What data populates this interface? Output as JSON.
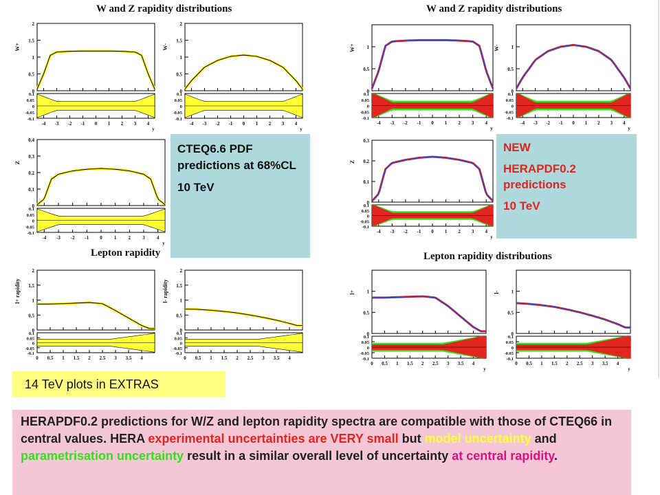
{
  "titles": {
    "left_wz": "W and Z rapidity distributions",
    "right_wz": "W and Z rapidity distributions",
    "left_lepton": "Lepton rapidity",
    "right_lepton": "Lepton rapidity distributions"
  },
  "cteq_box": {
    "line1": "CTEQ6.6 PDF predictions at 68%CL",
    "line2": "10 TeV"
  },
  "hera_box": {
    "line1": "NEW",
    "line2": "HERAPDF0.2 predictions",
    "line3": "10 TeV"
  },
  "extras_label": "14 TeV plots in EXTRAS",
  "bottom_text": {
    "p1": "HERAPDF0.2 predictions for W/Z and lepton rapidity spectra are compatible with those of CTEQ66 in central values. HERA ",
    "p2": "experimental uncertainties are VERY small",
    "p3": " but ",
    "p4": "model uncertainty",
    "p5": " and ",
    "p6": "parametrisation uncertainty",
    "p7": " result in a similar overall level of uncertainty ",
    "p8": "at central rapidity",
    "p9": "."
  },
  "colors": {
    "cyan_box": "#add8dc",
    "yellow_box": "#ffff80",
    "pink_box": "#f5c6d6",
    "exp_band": "#e0261e",
    "model_band": "#ffff33",
    "param_band": "#33e11a",
    "cteq_band": "#ffff33",
    "hera_line": "#3344cc"
  },
  "chart_data": [
    {
      "type": "line",
      "panel": "cteq-wplus",
      "ylabel": "W+",
      "xlabel": "y",
      "xlim": [
        -4.5,
        4.5
      ],
      "ylim": [
        0,
        2
      ],
      "x_ticks": [
        "-4",
        "-3",
        "-2",
        "-1",
        "0",
        "1",
        "2",
        "3",
        "4"
      ],
      "y_ticks": [
        "0",
        "0.5",
        "1",
        "1.5",
        "2"
      ],
      "x": [
        -4.5,
        -4,
        -3.5,
        -3,
        -2,
        -1,
        0,
        1,
        2,
        3,
        3.5,
        4,
        4.5
      ],
      "values": [
        0.05,
        0.5,
        1.05,
        1.15,
        1.17,
        1.18,
        1.18,
        1.18,
        1.17,
        1.15,
        1.05,
        0.5,
        0.05
      ],
      "ratio_ticks": [
        "0.1",
        "0.05",
        "0",
        "-0.05",
        "-0.1"
      ]
    },
    {
      "type": "line",
      "panel": "cteq-wminus",
      "ylabel": "W-",
      "xlabel": "y",
      "xlim": [
        -4.5,
        4.5
      ],
      "ylim": [
        0,
        2
      ],
      "x_ticks": [
        "-4",
        "-3",
        "-2",
        "-1",
        "0",
        "1",
        "2",
        "3",
        "4"
      ],
      "y_ticks": [
        "0",
        "0.5",
        "1",
        "1.5",
        "2"
      ],
      "x": [
        -4.5,
        -4,
        -3,
        -2,
        -1,
        0,
        1,
        2,
        3,
        4,
        4.5
      ],
      "values": [
        0.05,
        0.3,
        0.7,
        0.9,
        1.02,
        1.06,
        1.02,
        0.9,
        0.7,
        0.3,
        0.05
      ],
      "ratio_ticks": [
        "0.1",
        "0.05",
        "0",
        "-0.05",
        "-0.1"
      ]
    },
    {
      "type": "line",
      "panel": "cteq-z",
      "ylabel": "Z",
      "xlabel": "y",
      "xlim": [
        -4.5,
        4.5
      ],
      "ylim": [
        0,
        0.4
      ],
      "x_ticks": [
        "-4",
        "-3",
        "-2",
        "-1",
        "0",
        "1",
        "2",
        "3",
        "4"
      ],
      "y_ticks": [
        "0",
        "0.1",
        "0.2",
        "0.3",
        "0.4"
      ],
      "x": [
        -4.5,
        -4,
        -3.5,
        -3,
        -2,
        -1,
        0,
        1,
        2,
        3,
        3.5,
        4,
        4.5
      ],
      "values": [
        0.005,
        0.04,
        0.16,
        0.19,
        0.21,
        0.22,
        0.225,
        0.22,
        0.21,
        0.19,
        0.16,
        0.04,
        0.005
      ],
      "ratio_ticks": [
        "0.1",
        "0.05",
        "0",
        "-0.05",
        "-0.1"
      ]
    },
    {
      "type": "line",
      "panel": "cteq-lplus",
      "ylabel": "l+ rapidity",
      "xlabel": "",
      "xlim": [
        0,
        4.5
      ],
      "ylim": [
        0,
        2
      ],
      "x_ticks": [
        "0",
        "0.5",
        "1",
        "1.5",
        "2",
        "2.5",
        "3",
        "3.5",
        "4"
      ],
      "y_ticks": [
        "0",
        "0.5",
        "1",
        "1.5",
        "2"
      ],
      "x": [
        0,
        0.5,
        1,
        1.5,
        2,
        2.5,
        3,
        3.5,
        4,
        4.3
      ],
      "values": [
        0.87,
        0.87,
        0.88,
        0.9,
        0.92,
        0.88,
        0.65,
        0.4,
        0.15,
        0.05
      ],
      "ratio_ticks": [
        "0.1",
        "0.05",
        "0",
        "-0.05",
        "-0.1"
      ]
    },
    {
      "type": "line",
      "panel": "cteq-lminus",
      "ylabel": "l- rapidity",
      "xlabel": "",
      "xlim": [
        0,
        4.5
      ],
      "ylim": [
        0,
        2
      ],
      "x_ticks": [
        "0",
        "0.5",
        "1",
        "1.5",
        "2",
        "2.5",
        "3",
        "3.5",
        "4"
      ],
      "y_ticks": [
        "0",
        "0.5",
        "1",
        "1.5",
        "2"
      ],
      "x": [
        0,
        0.5,
        1,
        1.5,
        2,
        2.5,
        3,
        3.5,
        4,
        4.3
      ],
      "values": [
        0.7,
        0.69,
        0.66,
        0.62,
        0.57,
        0.5,
        0.42,
        0.33,
        0.22,
        0.15
      ],
      "ratio_ticks": [
        "0.1",
        "0.05",
        "0",
        "-0.05",
        "-0.1"
      ]
    },
    {
      "type": "line",
      "panel": "hera-wplus",
      "ylabel": "W+",
      "xlabel": "y",
      "xlim": [
        -4.5,
        4.5
      ],
      "ylim": [
        0,
        1.5
      ],
      "x_ticks": [
        "-4",
        "-3",
        "-2",
        "-1",
        "0",
        "1",
        "2",
        "3",
        "4"
      ],
      "y_ticks": [
        "0",
        "0.5",
        "1"
      ],
      "x": [
        -4.5,
        -4,
        -3.5,
        -3,
        -2,
        -1,
        0,
        1,
        2,
        3,
        3.5,
        4,
        4.5
      ],
      "values": [
        0.05,
        0.45,
        1.02,
        1.12,
        1.14,
        1.15,
        1.15,
        1.15,
        1.14,
        1.12,
        1.02,
        0.45,
        0.05
      ],
      "ratio_ticks": [
        "0.1",
        "0.05",
        "0",
        "-0.05",
        "-0.1"
      ]
    },
    {
      "type": "line",
      "panel": "hera-wminus",
      "ylabel": "W-",
      "xlabel": "y",
      "xlim": [
        -4.5,
        4.5
      ],
      "ylim": [
        0,
        1.5
      ],
      "x_ticks": [
        "-4",
        "-3",
        "-2",
        "-1",
        "0",
        "1",
        "2",
        "3",
        "4"
      ],
      "y_ticks": [
        "0",
        "0.5",
        "1"
      ],
      "x": [
        -4.5,
        -4,
        -3,
        -2,
        -1,
        0,
        1,
        2,
        3,
        4,
        4.5
      ],
      "values": [
        0.05,
        0.3,
        0.7,
        0.9,
        1.0,
        1.04,
        1.0,
        0.9,
        0.7,
        0.3,
        0.05
      ],
      "ratio_ticks": [
        "0.1",
        "0.05",
        "0",
        "-0.05",
        "-0.1"
      ]
    },
    {
      "type": "line",
      "panel": "hera-z",
      "ylabel": "Z",
      "xlabel": "y",
      "xlim": [
        -4.5,
        4.5
      ],
      "ylim": [
        0,
        0.3
      ],
      "x_ticks": [
        "-4",
        "-3",
        "-2",
        "-1",
        "0",
        "1",
        "2",
        "3",
        "4"
      ],
      "y_ticks": [
        "0",
        "0.1",
        "0.2",
        "0.3"
      ],
      "x": [
        -4.5,
        -4,
        -3.5,
        -3,
        -2,
        -1,
        0,
        1,
        2,
        3,
        3.5,
        4,
        4.5
      ],
      "values": [
        0.005,
        0.04,
        0.16,
        0.19,
        0.205,
        0.215,
        0.22,
        0.215,
        0.205,
        0.19,
        0.16,
        0.04,
        0.005
      ],
      "ratio_ticks": [
        "0.1",
        "0.05",
        "0",
        "-0.05",
        "-0.1"
      ]
    },
    {
      "type": "line",
      "panel": "hera-lplus",
      "ylabel": "l+",
      "xlabel": "y",
      "xlim": [
        0,
        4.5
      ],
      "ylim": [
        0,
        1.5
      ],
      "x_ticks": [
        "0",
        "0.5",
        "1",
        "1.5",
        "2",
        "2.5",
        "3",
        "3.5",
        "4"
      ],
      "y_ticks": [
        "0",
        "0.5",
        "1"
      ],
      "x": [
        0,
        0.5,
        1,
        1.5,
        2,
        2.5,
        3,
        3.5,
        4,
        4.3
      ],
      "values": [
        0.85,
        0.85,
        0.86,
        0.87,
        0.88,
        0.85,
        0.65,
        0.4,
        0.15,
        0.05
      ],
      "ratio_ticks": [
        "0.1",
        "0.05",
        "0",
        "-0.05",
        "-0.1"
      ]
    },
    {
      "type": "line",
      "panel": "hera-lminus",
      "ylabel": "l-",
      "xlabel": "y",
      "xlim": [
        0,
        4.5
      ],
      "ylim": [
        0,
        1.5
      ],
      "x_ticks": [
        "0",
        "0.5",
        "1",
        "1.5",
        "2",
        "2.5",
        "3",
        "3.5",
        "4"
      ],
      "y_ticks": [
        "0",
        "0.5",
        "1"
      ],
      "x": [
        0,
        0.5,
        1,
        1.5,
        2,
        2.5,
        3,
        3.5,
        4,
        4.3
      ],
      "values": [
        0.72,
        0.7,
        0.67,
        0.63,
        0.57,
        0.5,
        0.42,
        0.33,
        0.22,
        0.14
      ],
      "ratio_ticks": [
        "0.1",
        "0.05",
        "0",
        "-0.05",
        "-0.1"
      ]
    }
  ]
}
